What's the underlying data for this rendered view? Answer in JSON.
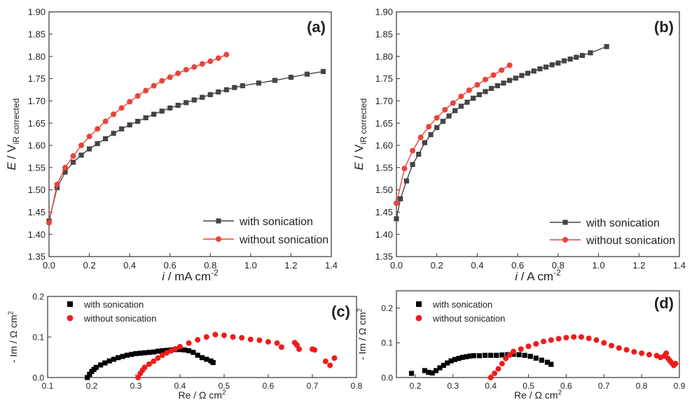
{
  "chart_data": [
    {
      "type": "line",
      "panel_label": "(a)",
      "xlabel": {
        "sym": "i",
        "rest": " / mA cm",
        "sup": "-2"
      },
      "ylabel": {
        "sym": "E",
        "rest": " / V",
        "sub": "iR corrected"
      },
      "xlim": [
        0,
        1.4
      ],
      "ylim": [
        1.35,
        1.9
      ],
      "xticks": [
        "0.0",
        "0.2",
        "0.4",
        "0.6",
        "0.8",
        "1.0",
        "1.2",
        "1.4"
      ],
      "yticks": [
        "1.35",
        "1.40",
        "1.45",
        "1.50",
        "1.55",
        "1.60",
        "1.65",
        "1.70",
        "1.75",
        "1.80",
        "1.85",
        "1.90"
      ],
      "legend_position": "bottom-right",
      "series": [
        {
          "name": "with sonication",
          "color": "#444444",
          "marker": "square",
          "x": [
            0,
            0.04,
            0.08,
            0.12,
            0.16,
            0.2,
            0.24,
            0.28,
            0.32,
            0.36,
            0.4,
            0.44,
            0.48,
            0.52,
            0.56,
            0.6,
            0.64,
            0.68,
            0.72,
            0.76,
            0.8,
            0.84,
            0.88,
            0.92,
            0.96,
            1.04,
            1.12,
            1.2,
            1.28,
            1.36
          ],
          "y": [
            1.43,
            1.505,
            1.54,
            1.562,
            1.578,
            1.592,
            1.604,
            1.615,
            1.627,
            1.637,
            1.646,
            1.654,
            1.662,
            1.67,
            1.677,
            1.684,
            1.69,
            1.696,
            1.702,
            1.708,
            1.714,
            1.72,
            1.725,
            1.73,
            1.734,
            1.74,
            1.746,
            1.753,
            1.76,
            1.766
          ]
        },
        {
          "name": "without sonication",
          "color": "#e8443a",
          "marker": "circle",
          "x": [
            0,
            0.04,
            0.08,
            0.12,
            0.16,
            0.2,
            0.24,
            0.28,
            0.32,
            0.36,
            0.4,
            0.44,
            0.48,
            0.52,
            0.56,
            0.6,
            0.64,
            0.68,
            0.72,
            0.76,
            0.8,
            0.84,
            0.88
          ],
          "y": [
            1.426,
            1.512,
            1.55,
            1.576,
            1.6,
            1.62,
            1.637,
            1.654,
            1.67,
            1.684,
            1.698,
            1.711,
            1.723,
            1.734,
            1.745,
            1.753,
            1.762,
            1.77,
            1.776,
            1.783,
            1.789,
            1.796,
            1.804
          ]
        }
      ]
    },
    {
      "type": "line",
      "panel_label": "(b)",
      "xlabel": {
        "sym": "i",
        "rest": " / A cm",
        "sup": "-2"
      },
      "ylabel": {
        "sym": "E",
        "rest": " / V",
        "sub": "iR corrected"
      },
      "xlim": [
        0,
        1.4
      ],
      "ylim": [
        1.35,
        1.9
      ],
      "xticks": [
        "0.0",
        "0.2",
        "0.4",
        "0.6",
        "0.8",
        "1.0",
        "1.2",
        "1.4"
      ],
      "yticks": [
        "1.35",
        "1.40",
        "1.45",
        "1.50",
        "1.55",
        "1.60",
        "1.65",
        "1.70",
        "1.75",
        "1.80",
        "1.85",
        "1.90"
      ],
      "legend_position": "bottom-right",
      "series": [
        {
          "name": "with sonication",
          "color": "#444444",
          "marker": "square",
          "x": [
            0,
            0.02,
            0.05,
            0.08,
            0.11,
            0.14,
            0.17,
            0.2,
            0.23,
            0.26,
            0.29,
            0.32,
            0.35,
            0.38,
            0.41,
            0.44,
            0.47,
            0.5,
            0.53,
            0.56,
            0.59,
            0.62,
            0.65,
            0.68,
            0.71,
            0.74,
            0.77,
            0.8,
            0.83,
            0.86,
            0.89,
            0.92,
            0.96,
            1.04
          ],
          "y": [
            1.435,
            1.48,
            1.52,
            1.557,
            1.58,
            1.606,
            1.624,
            1.64,
            1.654,
            1.666,
            1.678,
            1.688,
            1.697,
            1.706,
            1.714,
            1.721,
            1.728,
            1.734,
            1.74,
            1.746,
            1.751,
            1.757,
            1.762,
            1.767,
            1.772,
            1.776,
            1.781,
            1.785,
            1.79,
            1.794,
            1.798,
            1.802,
            1.808,
            1.822
          ]
        },
        {
          "name": "without sonication",
          "color": "#e8443a",
          "marker": "circle",
          "x": [
            0,
            0.04,
            0.08,
            0.12,
            0.16,
            0.2,
            0.24,
            0.28,
            0.32,
            0.36,
            0.4,
            0.44,
            0.48,
            0.52,
            0.56
          ],
          "y": [
            1.47,
            1.548,
            1.588,
            1.618,
            1.642,
            1.662,
            1.68,
            1.695,
            1.71,
            1.724,
            1.736,
            1.748,
            1.758,
            1.769,
            1.78
          ]
        }
      ]
    },
    {
      "type": "scatter",
      "panel_label": "(c)",
      "xlabel": {
        "sym": "",
        "rest": "Re / Ω cm",
        "sup": "2"
      },
      "ylabel": {
        "sym": "",
        "rest": "- Im / Ω cm",
        "sup": "2"
      },
      "xlim": [
        0.1,
        0.8
      ],
      "ylim": [
        0,
        0.2
      ],
      "xticks": [
        "0.1",
        "0.2",
        "0.3",
        "0.4",
        "0.5",
        "0.6",
        "0.7",
        "0.8"
      ],
      "yticks": [
        "0.0",
        "0.1",
        "0.2"
      ],
      "legend_position": "top-left",
      "series": [
        {
          "name": "with sonication",
          "color": "#000000",
          "marker": "square",
          "x": [
            0.19,
            0.195,
            0.2,
            0.205,
            0.21,
            0.22,
            0.23,
            0.24,
            0.25,
            0.26,
            0.27,
            0.28,
            0.29,
            0.3,
            0.31,
            0.32,
            0.33,
            0.34,
            0.35,
            0.36,
            0.37,
            0.38,
            0.39,
            0.4,
            0.41,
            0.42,
            0.43,
            0.44,
            0.45,
            0.46,
            0.47,
            0.475
          ],
          "y": [
            0.0,
            0.008,
            0.015,
            0.02,
            0.025,
            0.031,
            0.036,
            0.041,
            0.045,
            0.049,
            0.052,
            0.055,
            0.057,
            0.059,
            0.06,
            0.061,
            0.062,
            0.063,
            0.065,
            0.066,
            0.067,
            0.068,
            0.069,
            0.069,
            0.068,
            0.066,
            0.062,
            0.055,
            0.049,
            0.045,
            0.041,
            0.037
          ]
        },
        {
          "name": "without sonication",
          "color": "#ee1c1c",
          "marker": "circle",
          "x": [
            0.305,
            0.31,
            0.315,
            0.32,
            0.33,
            0.34,
            0.35,
            0.36,
            0.37,
            0.38,
            0.39,
            0.4,
            0.42,
            0.44,
            0.46,
            0.48,
            0.5,
            0.52,
            0.54,
            0.56,
            0.58,
            0.6,
            0.62,
            0.63,
            0.66,
            0.665,
            0.67,
            0.7,
            0.705,
            0.73,
            0.74,
            0.75
          ],
          "y": [
            0.0,
            0.01,
            0.018,
            0.025,
            0.033,
            0.04,
            0.048,
            0.055,
            0.061,
            0.066,
            0.071,
            0.076,
            0.085,
            0.093,
            0.1,
            0.106,
            0.104,
            0.1,
            0.098,
            0.094,
            0.092,
            0.088,
            0.085,
            0.075,
            0.086,
            0.08,
            0.07,
            0.07,
            0.068,
            0.04,
            0.03,
            0.048
          ]
        }
      ]
    },
    {
      "type": "scatter",
      "panel_label": "(d)",
      "xlabel": {
        "sym": "",
        "rest": "Re / Ω cm",
        "sup": "2"
      },
      "ylabel": {
        "sym": "",
        "rest": "- Im / Ω cm",
        "sup": "2"
      },
      "xlim": [
        0.15,
        0.9
      ],
      "ylim": [
        0,
        0.25
      ],
      "xticks": [
        "0.2",
        "0.3",
        "0.4",
        "0.5",
        "0.6",
        "0.7",
        "0.8",
        "0.9"
      ],
      "yticks": [
        "0.0",
        "0.1",
        "0.2"
      ],
      "legend_position": "top-left",
      "series": [
        {
          "name": "with sonication",
          "color": "#000000",
          "marker": "square",
          "x": [
            0.19,
            0.225,
            0.235,
            0.245,
            0.255,
            0.265,
            0.275,
            0.285,
            0.295,
            0.305,
            0.315,
            0.325,
            0.335,
            0.345,
            0.355,
            0.37,
            0.385,
            0.4,
            0.415,
            0.43,
            0.445,
            0.46,
            0.475,
            0.49,
            0.505,
            0.52,
            0.535,
            0.55,
            0.56
          ],
          "y": [
            0.012,
            0.02,
            0.015,
            0.013,
            0.02,
            0.028,
            0.035,
            0.042,
            0.048,
            0.052,
            0.055,
            0.058,
            0.06,
            0.062,
            0.063,
            0.063,
            0.064,
            0.064,
            0.064,
            0.065,
            0.066,
            0.067,
            0.066,
            0.064,
            0.061,
            0.056,
            0.05,
            0.044,
            0.038
          ]
        },
        {
          "name": "without sonication",
          "color": "#ee1c1c",
          "marker": "circle",
          "x": [
            0.4,
            0.41,
            0.42,
            0.43,
            0.44,
            0.45,
            0.46,
            0.48,
            0.5,
            0.52,
            0.54,
            0.56,
            0.58,
            0.6,
            0.62,
            0.64,
            0.66,
            0.68,
            0.7,
            0.72,
            0.74,
            0.76,
            0.78,
            0.8,
            0.82,
            0.84,
            0.85,
            0.86,
            0.865,
            0.87,
            0.875,
            0.88,
            0.885,
            0.89
          ],
          "y": [
            0.0,
            0.012,
            0.025,
            0.04,
            0.055,
            0.065,
            0.075,
            0.082,
            0.09,
            0.097,
            0.104,
            0.108,
            0.112,
            0.115,
            0.117,
            0.117,
            0.113,
            0.108,
            0.1,
            0.092,
            0.085,
            0.08,
            0.074,
            0.07,
            0.066,
            0.063,
            0.058,
            0.062,
            0.07,
            0.055,
            0.048,
            0.042,
            0.035,
            0.04
          ]
        }
      ]
    }
  ]
}
